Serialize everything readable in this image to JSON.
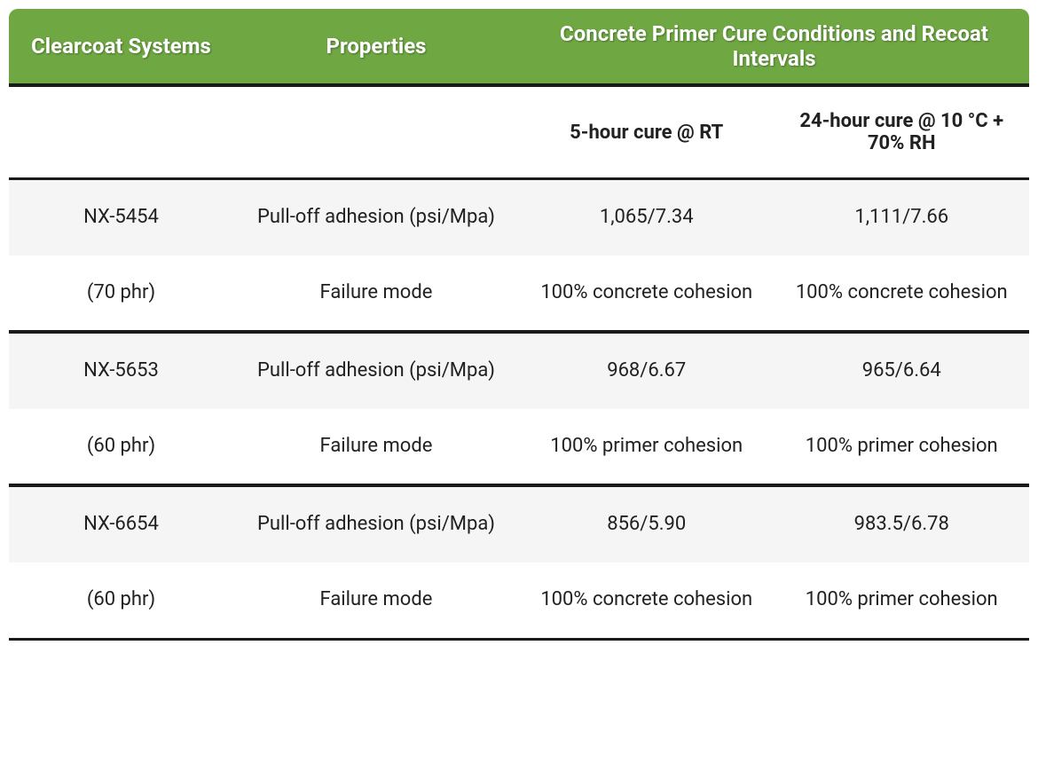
{
  "header": {
    "col1": "Clearcoat Systems",
    "col2": "Properties",
    "col34": "Concrete Primer Cure Conditions and Recoat Intervals"
  },
  "subheader": {
    "c1": "",
    "c2": "",
    "c3": "5-hour cure @ RT",
    "c4": "24-hour cure @ 10 °C + 70% RH"
  },
  "groups": [
    {
      "row1": {
        "system": "NX-5454",
        "property": "Pull-off adhesion (psi/Mpa)",
        "v1": "1,065/7.34",
        "v2": "1,111/7.66"
      },
      "row2": {
        "system": "(70 phr)",
        "property": "Failure mode",
        "v1": "100% concrete cohesion",
        "v2": "100% concrete cohesion"
      }
    },
    {
      "row1": {
        "system": "NX-5653",
        "property": "Pull-off adhesion (psi/Mpa)",
        "v1": "968/6.67",
        "v2": "965/6.64"
      },
      "row2": {
        "system": "(60 phr)",
        "property": "Failure mode",
        "v1": "100% primer cohesion",
        "v2": "100% primer cohesion"
      }
    },
    {
      "row1": {
        "system": "NX-6654",
        "property": "Pull-off adhesion (psi/Mpa)",
        "v1": "856/5.90",
        "v2": "983.5/6.78"
      },
      "row2": {
        "system": "(60 phr)",
        "property": "Failure mode",
        "v1": "100% concrete cohesion",
        "v2": "100% primer cohesion"
      }
    }
  ],
  "colors": {
    "header_bg": "#6fa843",
    "header_text": "#ffffff",
    "row_shade": "#f5f5f5",
    "row_plain": "#ffffff",
    "border": "#1a1a1a",
    "text": "#212121"
  }
}
